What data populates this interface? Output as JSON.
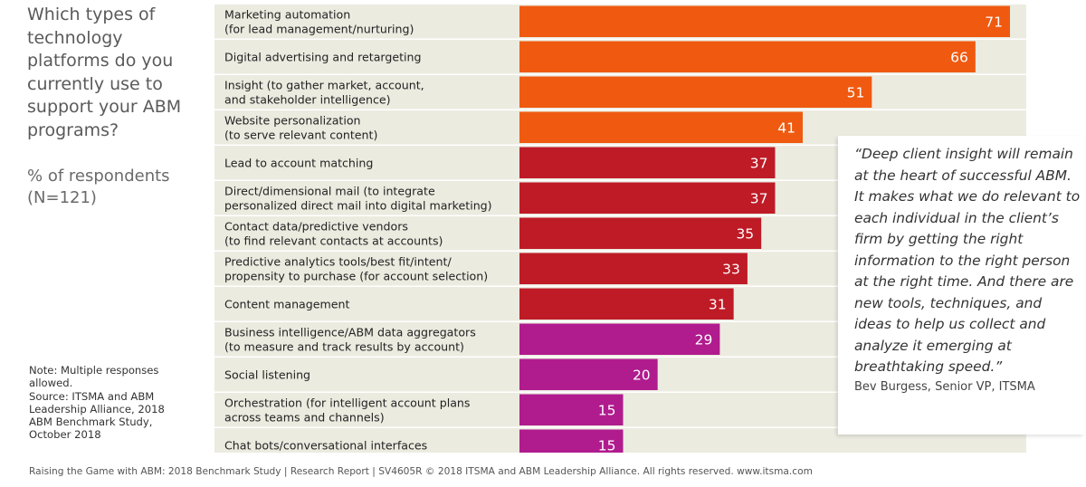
{
  "question": "Which types of technology platforms do you currently use to support your ABM programs?",
  "subtitle_line1": "% of respondents",
  "subtitle_line2": "(N=121)",
  "note_lines": [
    "Note: Multiple responses",
    "allowed.",
    "Source: ITSMA and ABM",
    "Leadership Alliance, 2018",
    "ABM Benchmark Study,",
    "October 2018"
  ],
  "quote": {
    "text": "“Deep client insight will remain at the heart of successful ABM. It makes what we do relevant to each individual in the client’s firm by getting the right information to the right person at the right time. And there are new tools, techniques, and ideas to help us collect and analyze it emerging at breathtaking speed.”",
    "author": "Bev Burgess, Senior VP, ITSMA"
  },
  "footer": "Raising the Game with ABM: 2018 Benchmark Study | Research Report | SV4605R © 2018 ITSMA and ABM Leadership Alliance. All rights reserved. www.itsma.com",
  "colors": {
    "orange": "#ef5a10",
    "red": "#be1b27",
    "magenta": "#b01b8e",
    "row_background": "#ecebe0"
  },
  "chart_data": {
    "type": "bar",
    "orientation": "horizontal",
    "xlim": [
      0,
      100
    ],
    "categories": [
      [
        "Marketing automation",
        "(for lead management/nurturing)"
      ],
      [
        "Digital advertising and retargeting"
      ],
      [
        "Insight (to gather market, account,",
        "and stakeholder intelligence)"
      ],
      [
        "Website personalization",
        "(to serve relevant content)"
      ],
      [
        "Lead to account matching"
      ],
      [
        "Direct/dimensional mail (to integrate",
        "personalized direct mail into digital marketing)"
      ],
      [
        "Contact data/predictive vendors",
        "(to find relevant contacts at accounts)"
      ],
      [
        "Predictive analytics tools/best fit/intent/",
        "propensity to purchase (for account selection)"
      ],
      [
        "Content management"
      ],
      [
        "Business intelligence/ABM data aggregators",
        "(to measure and track results by account)"
      ],
      [
        "Social listening"
      ],
      [
        "Orchestration (for intelligent account plans",
        "across teams and channels)"
      ],
      [
        "Chat bots/conversational interfaces"
      ]
    ],
    "values": [
      71,
      66,
      51,
      41,
      37,
      37,
      35,
      33,
      31,
      29,
      20,
      15,
      15
    ],
    "color_groups": [
      "orange",
      "orange",
      "orange",
      "orange",
      "red",
      "red",
      "red",
      "red",
      "red",
      "magenta",
      "magenta",
      "magenta",
      "magenta"
    ]
  }
}
